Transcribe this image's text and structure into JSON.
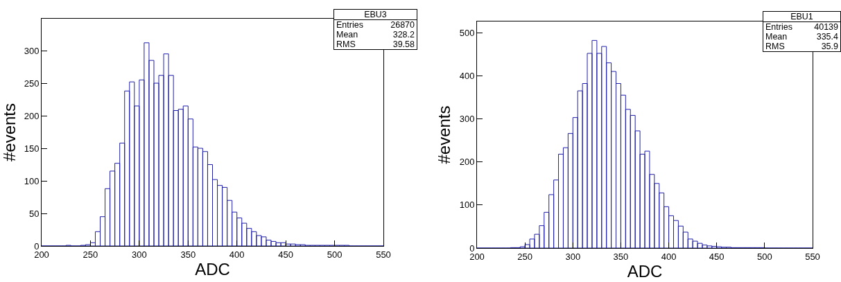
{
  "chart_data": [
    {
      "type": "histogram",
      "title": "EBU3",
      "xlabel": "ADC",
      "ylabel": "#events",
      "color": "#1f1fa8",
      "grid": false,
      "legend": false,
      "annotations": [
        "Entries",
        "26870",
        "Mean",
        "328.2",
        "RMS",
        "39.58"
      ],
      "bins": [
        200,
        205,
        210,
        215,
        220,
        225,
        230,
        235,
        240,
        245,
        250,
        255,
        260,
        265,
        270,
        275,
        280,
        285,
        290,
        295,
        300,
        305,
        310,
        315,
        320,
        325,
        330,
        335,
        340,
        345,
        350,
        355,
        360,
        365,
        370,
        375,
        380,
        385,
        390,
        395,
        400,
        405,
        410,
        415,
        420,
        425,
        430,
        435,
        440,
        445,
        450,
        455,
        460,
        465,
        470,
        475,
        480,
        485,
        490,
        495,
        500,
        505,
        510,
        515,
        520,
        525,
        530,
        535,
        540,
        545,
        550
      ],
      "values": [
        0,
        0,
        0,
        0,
        0,
        1,
        0,
        0,
        1,
        2,
        5,
        22,
        45,
        88,
        115,
        127,
        158,
        238,
        252,
        215,
        255,
        312,
        285,
        250,
        262,
        295,
        262,
        208,
        210,
        215,
        195,
        152,
        150,
        145,
        125,
        102,
        93,
        90,
        70,
        52,
        43,
        35,
        27,
        22,
        16,
        14,
        9,
        7,
        5,
        5,
        3,
        3,
        2,
        2,
        1,
        1,
        1,
        1,
        1,
        1,
        1,
        1,
        1,
        0,
        0,
        0,
        0,
        0,
        0,
        0
      ],
      "xlim": [
        200,
        550
      ],
      "xticks": [
        200,
        250,
        300,
        350,
        400,
        450,
        500,
        550
      ],
      "ylim": [
        0,
        349
      ],
      "yticks": [
        0,
        50,
        100,
        150,
        200,
        250,
        300
      ]
    },
    {
      "type": "histogram",
      "title": "EBU1",
      "xlabel": "ADC",
      "ylabel": "#events",
      "color": "#1f1fa8",
      "grid": false,
      "legend": false,
      "annotations": [
        "Entries",
        "40139",
        "Mean",
        "335.4",
        "RMS",
        "35.9"
      ],
      "bins": [
        200,
        205,
        210,
        215,
        220,
        225,
        230,
        235,
        240,
        245,
        250,
        255,
        260,
        265,
        270,
        275,
        280,
        285,
        290,
        295,
        300,
        305,
        310,
        315,
        320,
        325,
        330,
        335,
        340,
        345,
        350,
        355,
        360,
        365,
        370,
        375,
        380,
        385,
        390,
        395,
        400,
        405,
        410,
        415,
        420,
        425,
        430,
        435,
        440,
        445,
        450,
        455,
        460,
        465,
        470,
        475,
        480,
        485,
        490,
        495,
        500,
        505,
        510,
        515,
        520,
        525,
        530,
        535,
        540,
        545,
        550
      ],
      "values": [
        0,
        0,
        0,
        0,
        0,
        0,
        0,
        1,
        1,
        3,
        8,
        21,
        32,
        52,
        83,
        124,
        158,
        218,
        233,
        266,
        303,
        365,
        382,
        452,
        482,
        452,
        468,
        430,
        410,
        382,
        355,
        322,
        308,
        272,
        218,
        225,
        171,
        150,
        128,
        96,
        75,
        64,
        51,
        37,
        21,
        16,
        11,
        7,
        5,
        4,
        3,
        2,
        2,
        1,
        1,
        1,
        1,
        1,
        1,
        1,
        0,
        0,
        0,
        0,
        0,
        0,
        0,
        0,
        0,
        0
      ],
      "xlim": [
        200,
        550
      ],
      "xticks": [
        200,
        250,
        300,
        350,
        400,
        450,
        500,
        550
      ],
      "ylim": [
        0,
        526
      ],
      "yticks": [
        0,
        100,
        200,
        300,
        400,
        500
      ]
    }
  ]
}
